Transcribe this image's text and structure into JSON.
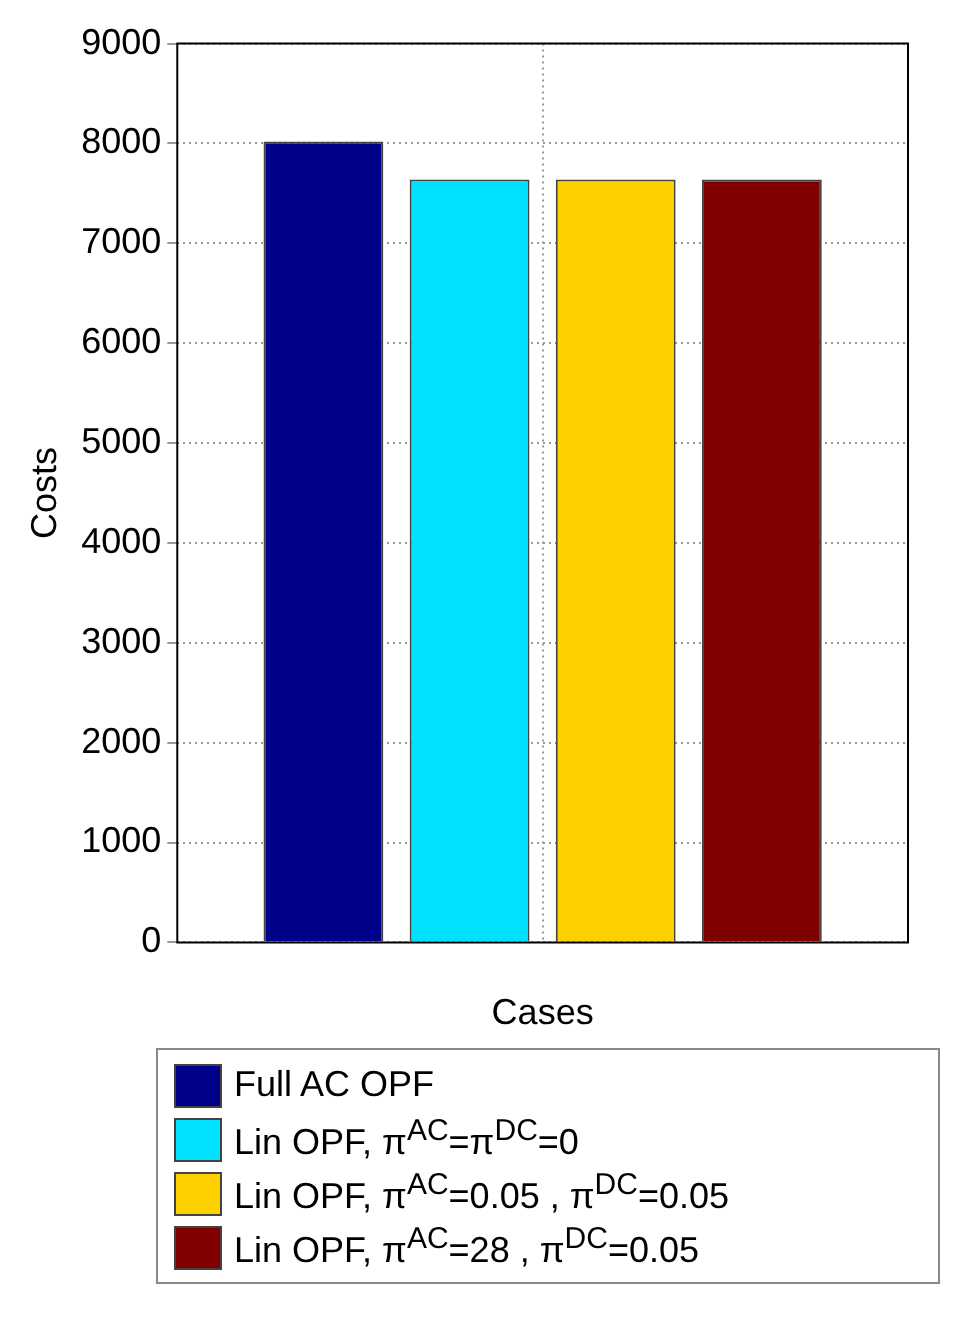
{
  "chart_data": {
    "type": "bar",
    "xlabel": "Cases",
    "ylabel": "Costs",
    "categories": [
      null
    ],
    "series": [
      {
        "name": "Full AC OPF",
        "color": "#00008b",
        "values": [
          8020
        ]
      },
      {
        "name": "Lin OPF,  π$^{AC}$=π$^{DC}$=0",
        "color": "#00e1ff",
        "values": [
          7640
        ]
      },
      {
        "name": "Lin OPF,  π$^{AC}$=0.05 ,  π$^{DC}$=0.05",
        "color": "#ffd000",
        "values": [
          7640
        ]
      },
      {
        "name": "Lin OPF, π$^{AC}$=28 ,  π$^{DC}$=0.05",
        "color": "#800000",
        "values": [
          7640
        ]
      }
    ],
    "ylim": [
      0,
      9000
    ],
    "yticks": [
      0,
      1000,
      2000,
      3000,
      4000,
      5000,
      6000,
      7000,
      8000,
      9000
    ],
    "grid": true,
    "legend": "bottom"
  }
}
